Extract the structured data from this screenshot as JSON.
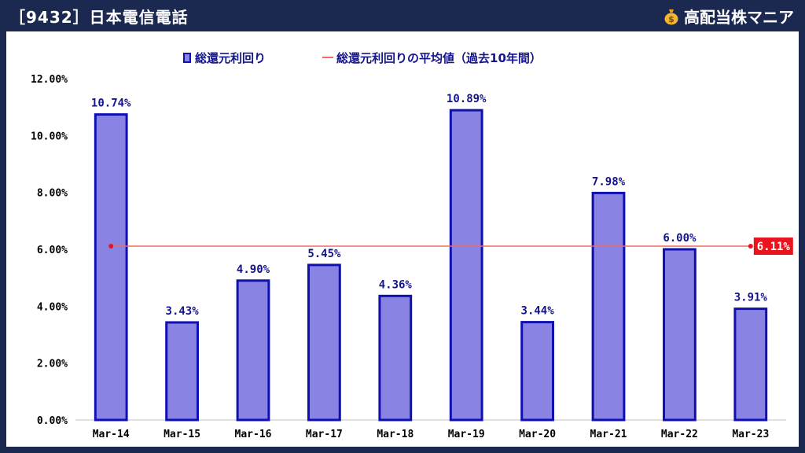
{
  "header": {
    "title": "［9432］日本電信電話",
    "brand": "高配当株マニア",
    "brand_icon": "money-bag-icon"
  },
  "colors": {
    "bar_fill": "#8983e3",
    "bar_stroke": "#1010b0",
    "avg_line": "#f06a6a",
    "avg_label_bg": "#e8141e",
    "label_text": "#14148c"
  },
  "chart_data": {
    "type": "bar",
    "title": "",
    "xlabel": "",
    "ylabel": "",
    "categories": [
      "Mar-14",
      "Mar-15",
      "Mar-16",
      "Mar-17",
      "Mar-18",
      "Mar-19",
      "Mar-20",
      "Mar-21",
      "Mar-22",
      "Mar-23"
    ],
    "series": [
      {
        "name": "総還元利回り",
        "values": [
          10.74,
          3.43,
          4.9,
          5.45,
          4.36,
          10.89,
          3.44,
          7.98,
          6.0,
          3.91
        ]
      }
    ],
    "value_labels": [
      "10.74%",
      "3.43%",
      "4.90%",
      "5.45%",
      "4.36%",
      "10.89%",
      "3.44%",
      "7.98%",
      "6.00%",
      "3.91%"
    ],
    "average": {
      "name": "総還元利回りの平均値（過去10年間）",
      "value": 6.11,
      "label": "6.11%"
    },
    "ylim": [
      0,
      12
    ],
    "yticks": [
      "0.00%",
      "2.00%",
      "4.00%",
      "6.00%",
      "8.00%",
      "10.00%",
      "12.00%"
    ],
    "grid": false,
    "legend_position": "top"
  }
}
